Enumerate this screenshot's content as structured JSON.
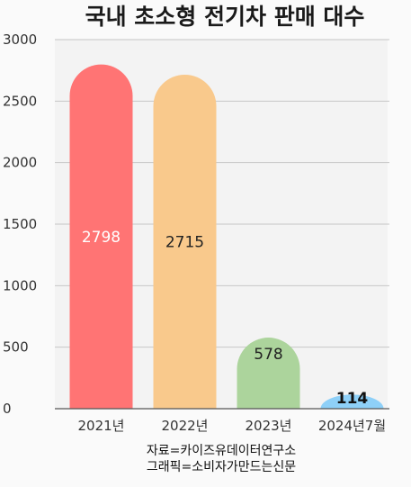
{
  "chart_data": {
    "type": "bar",
    "title": "국내 초소형 전기차 판매 대수",
    "categories": [
      "2021년",
      "2022년",
      "2023년",
      "2024년7월"
    ],
    "values": [
      2798,
      2715,
      578,
      114
    ],
    "data_labels": [
      "2798",
      "2715",
      "578",
      "114"
    ],
    "ylim": [
      0,
      3000
    ],
    "yticks": [
      0,
      500,
      1000,
      1500,
      2000,
      2500,
      3000
    ],
    "grid": true,
    "colors": [
      "#ff7474",
      "#f9c98c",
      "#acd49c",
      "#8ed0f8"
    ],
    "label_colors": [
      "#ffffff",
      "#222222",
      "#222222",
      "#111111"
    ]
  },
  "source": {
    "line1": "자료=카이즈유데이터연구소",
    "line2": "그래픽=소비자가만드는신문"
  }
}
